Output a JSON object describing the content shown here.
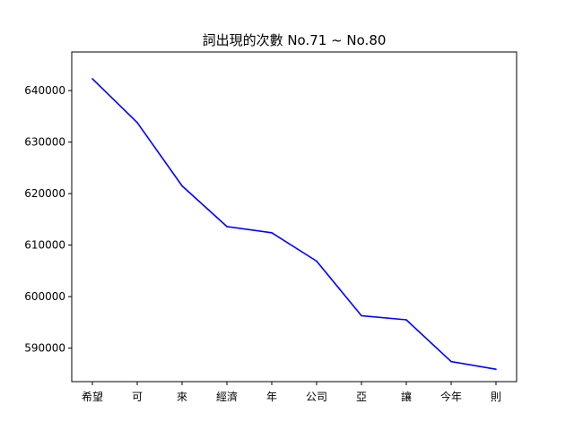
{
  "chart_data": {
    "type": "line",
    "title": "詞出現的次數 No.71 ~ No.80",
    "xlabel": "",
    "ylabel": "",
    "categories": [
      "希望",
      "可",
      "來",
      "經濟",
      "年",
      "公司",
      "亞",
      "讓",
      "今年",
      "則"
    ],
    "series": [
      {
        "color": "#0000ff",
        "values": [
          642300,
          633800,
          621500,
          613600,
          612400,
          606900,
          596300,
          595500,
          587400,
          585900
        ]
      }
    ],
    "ylim": [
      583500,
      647500
    ],
    "yticks": [
      590000,
      600000,
      610000,
      620000,
      630000,
      640000
    ],
    "grid": false,
    "legend": "none"
  }
}
